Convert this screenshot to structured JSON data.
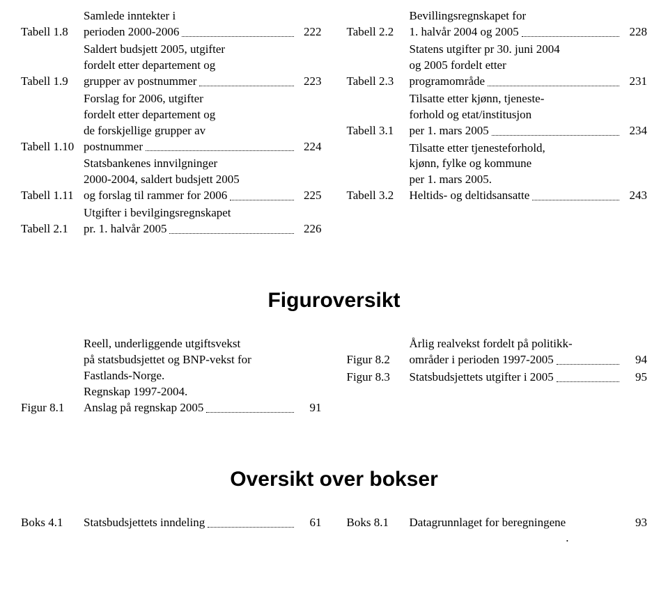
{
  "tables_left": [
    {
      "label": "Tabell 1.8",
      "lines": [
        "Samlede inntekter i",
        "perioden 2000-2006"
      ],
      "page": "222"
    },
    {
      "label": "Tabell 1.9",
      "lines": [
        "Saldert budsjett 2005, utgifter",
        "fordelt etter departement og",
        "grupper av postnummer"
      ],
      "page": "223"
    },
    {
      "label": "Tabell 1.10",
      "lines": [
        "Forslag for 2006, utgifter",
        "fordelt etter departement og",
        "de forskjellige grupper av",
        "postnummer"
      ],
      "page": "224"
    },
    {
      "label": "Tabell 1.11",
      "lines": [
        "Statsbankenes innvilgninger",
        "2000-2004, saldert budsjett 2005",
        "og forslag til rammer for 2006"
      ],
      "page": "225"
    },
    {
      "label": "Tabell 2.1",
      "lines": [
        "Utgifter i bevilgingsregnskapet",
        "pr. 1. halvår 2005"
      ],
      "page": "226"
    }
  ],
  "tables_right": [
    {
      "label": "Tabell 2.2",
      "lines": [
        "Bevillingsregnskapet for",
        "1. halvår 2004 og 2005"
      ],
      "page": "228"
    },
    {
      "label": "Tabell 2.3",
      "lines": [
        "Statens utgifter pr 30. juni 2004",
        "og 2005 fordelt etter",
        "programområde"
      ],
      "page": "231"
    },
    {
      "label": "Tabell 3.1",
      "lines": [
        "Tilsatte etter kjønn, tjeneste-",
        "forhold og etat/institusjon",
        "per 1. mars 2005"
      ],
      "page": "234"
    },
    {
      "label": "Tabell 3.2",
      "lines": [
        "Tilsatte etter tjenesteforhold,",
        "kjønn, fylke og kommune",
        "per 1. mars 2005.",
        "Heltids- og deltidsansatte"
      ],
      "page": "243"
    }
  ],
  "heading_figures": "Figuroversikt",
  "figures_left": [
    {
      "label": "Figur 8.1",
      "lines": [
        "Reell, underliggende utgiftsvekst",
        "på statsbudsjettet og BNP-vekst for",
        "Fastlands-Norge.",
        "Regnskap 1997-2004.",
        "Anslag på regnskap 2005"
      ],
      "page": "91"
    }
  ],
  "figures_right": [
    {
      "label": "Figur 8.2",
      "lines": [
        "Årlig realvekst fordelt på politikk-",
        "områder i perioden 1997-2005"
      ],
      "page": "94"
    },
    {
      "label": "Figur 8.3",
      "lines": [
        "Statsbudsjettets utgifter i 2005"
      ],
      "page": "95"
    }
  ],
  "heading_boxes": "Oversikt over bokser",
  "boxes_left": [
    {
      "label": "Boks 4.1",
      "lines": [
        "Statsbudsjettets inndeling"
      ],
      "page": "61"
    }
  ],
  "boxes_right": [
    {
      "label": "Boks 8.1",
      "lines": [
        "Datagrunnlaget for beregningene"
      ],
      "last_sep": ".",
      "page": "93"
    }
  ]
}
